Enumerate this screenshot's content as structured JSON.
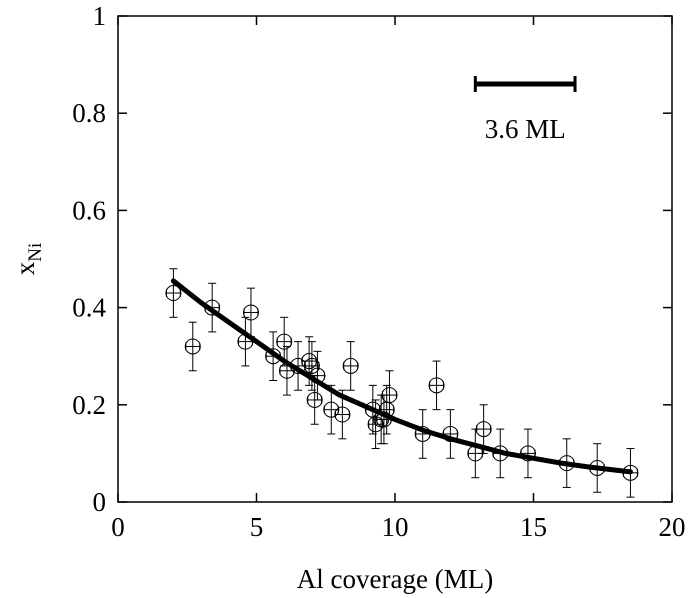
{
  "chart_data": {
    "type": "scatter",
    "title": "",
    "xlabel": "Al coverage (ML)",
    "ylabel": {
      "main": "x",
      "subscript": "Ni"
    },
    "xlim": [
      0,
      20
    ],
    "ylim": [
      0,
      1
    ],
    "xticks": [
      "0",
      "5",
      "10",
      "15",
      "20"
    ],
    "yticks": [
      "0",
      "0.2",
      "0.4",
      "0.6",
      "0.8",
      "1"
    ],
    "grid": false,
    "legend": "none",
    "annotation": {
      "text": "3.6 ML",
      "bar_start_x": 12.9,
      "bar_end_x": 16.5,
      "bar_y": 0.86
    },
    "points": [
      {
        "x": 2.0,
        "y": 0.43,
        "yerr": 0.05,
        "xerr": 0.25
      },
      {
        "x": 2.7,
        "y": 0.32,
        "yerr": 0.05,
        "xerr": 0.25
      },
      {
        "x": 3.4,
        "y": 0.4,
        "yerr": 0.05,
        "xerr": 0.25
      },
      {
        "x": 4.6,
        "y": 0.33,
        "yerr": 0.05,
        "xerr": 0.25
      },
      {
        "x": 4.8,
        "y": 0.39,
        "yerr": 0.05,
        "xerr": 0.25
      },
      {
        "x": 5.6,
        "y": 0.3,
        "yerr": 0.05,
        "xerr": 0.25
      },
      {
        "x": 6.0,
        "y": 0.33,
        "yerr": 0.05,
        "xerr": 0.25
      },
      {
        "x": 6.1,
        "y": 0.27,
        "yerr": 0.05,
        "xerr": 0.25
      },
      {
        "x": 6.5,
        "y": 0.28,
        "yerr": 0.05,
        "xerr": 0.25
      },
      {
        "x": 6.9,
        "y": 0.29,
        "yerr": 0.05,
        "xerr": 0.25
      },
      {
        "x": 7.0,
        "y": 0.28,
        "yerr": 0.05,
        "xerr": 0.25
      },
      {
        "x": 7.1,
        "y": 0.21,
        "yerr": 0.05,
        "xerr": 0.25
      },
      {
        "x": 7.2,
        "y": 0.26,
        "yerr": 0.05,
        "xerr": 0.25
      },
      {
        "x": 7.7,
        "y": 0.19,
        "yerr": 0.05,
        "xerr": 0.25
      },
      {
        "x": 8.1,
        "y": 0.18,
        "yerr": 0.05,
        "xerr": 0.25
      },
      {
        "x": 8.4,
        "y": 0.28,
        "yerr": 0.05,
        "xerr": 0.25
      },
      {
        "x": 9.2,
        "y": 0.19,
        "yerr": 0.05,
        "xerr": 0.25
      },
      {
        "x": 9.3,
        "y": 0.16,
        "yerr": 0.05,
        "xerr": 0.25
      },
      {
        "x": 9.5,
        "y": 0.17,
        "yerr": 0.05,
        "xerr": 0.25
      },
      {
        "x": 9.6,
        "y": 0.17,
        "yerr": 0.05,
        "xerr": 0.25
      },
      {
        "x": 9.7,
        "y": 0.19,
        "yerr": 0.05,
        "xerr": 0.25
      },
      {
        "x": 9.8,
        "y": 0.22,
        "yerr": 0.05,
        "xerr": 0.25
      },
      {
        "x": 11.0,
        "y": 0.14,
        "yerr": 0.05,
        "xerr": 0.25
      },
      {
        "x": 11.5,
        "y": 0.24,
        "yerr": 0.05,
        "xerr": 0.25
      },
      {
        "x": 12.0,
        "y": 0.14,
        "yerr": 0.05,
        "xerr": 0.25
      },
      {
        "x": 12.9,
        "y": 0.1,
        "yerr": 0.05,
        "xerr": 0.25
      },
      {
        "x": 13.2,
        "y": 0.15,
        "yerr": 0.05,
        "xerr": 0.25
      },
      {
        "x": 13.8,
        "y": 0.1,
        "yerr": 0.05,
        "xerr": 0.25
      },
      {
        "x": 14.8,
        "y": 0.1,
        "yerr": 0.05,
        "xerr": 0.25
      },
      {
        "x": 16.2,
        "y": 0.08,
        "yerr": 0.05,
        "xerr": 0.25
      },
      {
        "x": 17.3,
        "y": 0.07,
        "yerr": 0.05,
        "xerr": 0.25
      },
      {
        "x": 18.5,
        "y": 0.06,
        "yerr": 0.05,
        "xerr": 0.25
      }
    ],
    "fit_curve": {
      "x": [
        2.0,
        3.0,
        4.0,
        5.0,
        6.0,
        7.0,
        8.0,
        9.0,
        10.0,
        11.0,
        12.0,
        13.0,
        14.0,
        15.0,
        16.0,
        17.0,
        18.5
      ],
      "y": [
        0.455,
        0.41,
        0.37,
        0.33,
        0.29,
        0.255,
        0.22,
        0.195,
        0.17,
        0.148,
        0.13,
        0.115,
        0.1,
        0.09,
        0.08,
        0.072,
        0.062
      ]
    }
  }
}
